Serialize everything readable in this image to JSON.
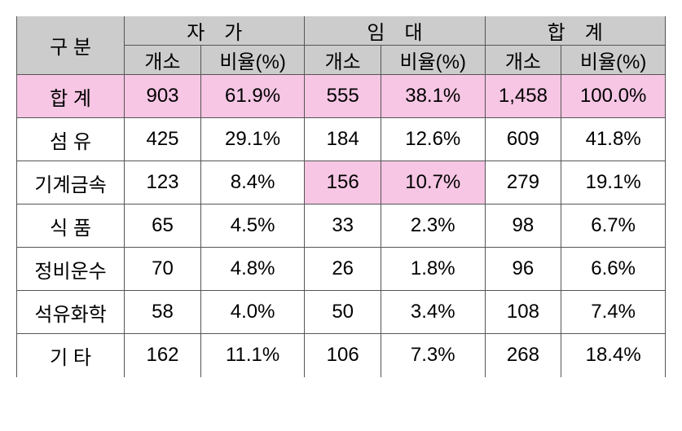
{
  "table": {
    "header": {
      "category": "구 분",
      "group1": "자　가",
      "group2": "임　대",
      "group3": "합　계",
      "count": "개소",
      "ratio": "비율(%)"
    },
    "colors": {
      "header_bg": "#cccccc",
      "highlight_bg": "#f6c6e4",
      "border": "#555555",
      "text": "#000000",
      "background": "#ffffff"
    },
    "rows": [
      {
        "label": "합 계",
        "cells": [
          "903",
          "61.9%",
          "555",
          "38.1%",
          "1,458",
          "100.0%"
        ],
        "highlight_row": true,
        "highlight_cells": []
      },
      {
        "label": "섬 유",
        "cells": [
          "425",
          "29.1%",
          "184",
          "12.6%",
          "609",
          "41.8%"
        ],
        "highlight_row": false,
        "highlight_cells": []
      },
      {
        "label": "기계금속",
        "cells": [
          "123",
          "8.4%",
          "156",
          "10.7%",
          "279",
          "19.1%"
        ],
        "highlight_row": false,
        "highlight_cells": [
          2,
          3
        ]
      },
      {
        "label": "식 품",
        "cells": [
          "65",
          "4.5%",
          "33",
          "2.3%",
          "98",
          "6.7%"
        ],
        "highlight_row": false,
        "highlight_cells": []
      },
      {
        "label": "정비운수",
        "cells": [
          "70",
          "4.8%",
          "26",
          "1.8%",
          "96",
          "6.6%"
        ],
        "highlight_row": false,
        "highlight_cells": []
      },
      {
        "label": "석유화학",
        "cells": [
          "58",
          "4.0%",
          "50",
          "3.4%",
          "108",
          "7.4%"
        ],
        "highlight_row": false,
        "highlight_cells": []
      },
      {
        "label": "기 타",
        "cells": [
          "162",
          "11.1%",
          "106",
          "7.3%",
          "268",
          "18.4%"
        ],
        "highlight_row": false,
        "highlight_cells": []
      }
    ]
  }
}
